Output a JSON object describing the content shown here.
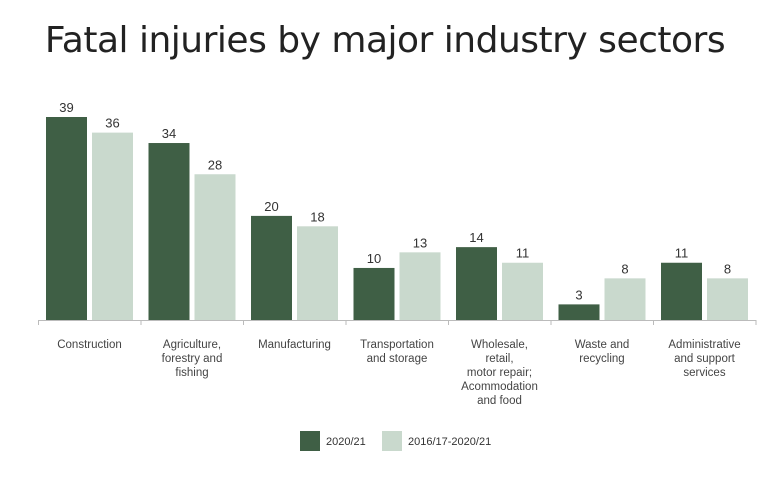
{
  "chart_data": {
    "type": "bar",
    "title": "Fatal injuries by major industry sectors",
    "categories": [
      [
        "Construction"
      ],
      [
        "Agriculture,",
        "forestry and",
        "fishing"
      ],
      [
        "Manufacturing"
      ],
      [
        "Transportation",
        "and storage"
      ],
      [
        "Wholesale,",
        "retail,",
        "motor repair;",
        "Acommodation",
        "and food"
      ],
      [
        "Waste and",
        "recycling"
      ],
      [
        "Administrative",
        "and support",
        "services"
      ]
    ],
    "series": [
      {
        "name": "2020/21",
        "color": "#3f5f45",
        "values": [
          39,
          34,
          20,
          10,
          14,
          3,
          11
        ]
      },
      {
        "name": "2016/17-2020/21",
        "color": "#c9d9cd",
        "values": [
          36,
          28,
          18,
          13,
          11,
          8,
          8
        ]
      }
    ],
    "xlabel": "",
    "ylabel": "",
    "ylim": [
      0,
      39
    ],
    "grid": false,
    "legend_position": "bottom-center"
  }
}
